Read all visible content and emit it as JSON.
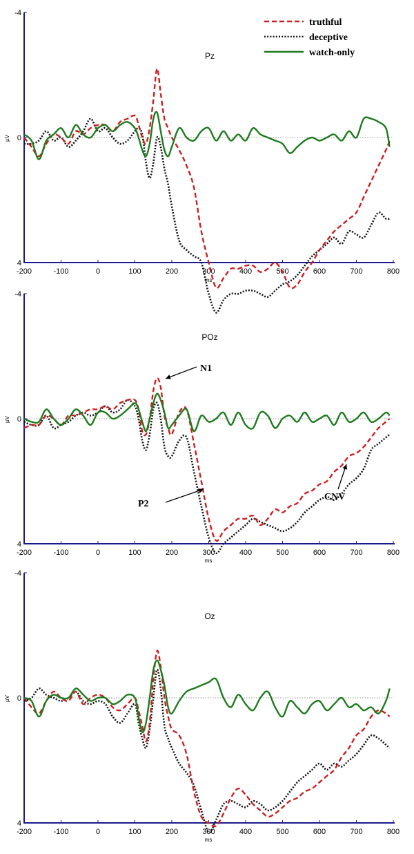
{
  "colors": {
    "truthful": "#cc1f1f",
    "deceptive": "#111111",
    "watch_only": "#1e7a1e",
    "axis": "#1a1a8c",
    "baseline": "#999999"
  },
  "legend": [
    {
      "name": "truthful",
      "style": "dashed",
      "color": "#cc1f1f"
    },
    {
      "name": "deceptive",
      "style": "dotted",
      "color": "#111111"
    },
    {
      "name": "watch-only",
      "style": "solid",
      "color": "#1e7a1e"
    }
  ],
  "chart_data": [
    {
      "type": "line",
      "title": "Pz",
      "xlabel": "ms",
      "ylabel": "µV",
      "xlim": [
        -200,
        800
      ],
      "ylim": [
        -4,
        4
      ],
      "y_inverted": true,
      "xticks": [
        -200,
        -100,
        0,
        100,
        200,
        300,
        400,
        500,
        600,
        700,
        800
      ],
      "yticks": [
        -4,
        0,
        4
      ],
      "x": [
        -200,
        -180,
        -160,
        -140,
        -120,
        -100,
        -80,
        -60,
        -40,
        -20,
        0,
        20,
        40,
        60,
        80,
        100,
        110,
        120,
        130,
        140,
        150,
        160,
        170,
        180,
        190,
        200,
        220,
        240,
        260,
        280,
        300,
        320,
        340,
        360,
        380,
        400,
        420,
        440,
        460,
        480,
        500,
        520,
        540,
        560,
        580,
        600,
        620,
        640,
        660,
        680,
        700,
        720,
        740,
        760,
        780,
        790
      ],
      "series": [
        {
          "name": "truthful",
          "values": [
            0,
            0.3,
            0.6,
            0.2,
            -0.1,
            0,
            0.2,
            -0.2,
            -0.1,
            -0.3,
            -0.4,
            -0.4,
            -0.2,
            -0.5,
            -0.6,
            -0.7,
            -0.4,
            0,
            0.2,
            -0.3,
            -1.2,
            -2.2,
            -1.4,
            -0.6,
            -0.3,
            0,
            0.4,
            0.9,
            1.6,
            3.0,
            4.0,
            4.8,
            4.5,
            4.2,
            4.2,
            4.1,
            4.1,
            4.3,
            4.2,
            4.0,
            4.3,
            4.8,
            4.7,
            4.3,
            4.0,
            3.6,
            3.3,
            3.0,
            2.8,
            2.6,
            2.4,
            1.9,
            1.4,
            0.9,
            0.4,
            0.1
          ]
        },
        {
          "name": "deceptive",
          "values": [
            0.2,
            0.2,
            0.1,
            -0.2,
            0.1,
            0,
            0.3,
            0.1,
            -0.2,
            -0.6,
            -0.2,
            -0.3,
            0,
            0.2,
            0.1,
            -0.2,
            -0.3,
            -0.1,
            0.8,
            1.3,
            0.8,
            0,
            0.3,
            1.0,
            1.5,
            2.2,
            3.3,
            3.6,
            3.8,
            4.0,
            5.0,
            5.6,
            5.2,
            5.0,
            5.0,
            4.9,
            4.9,
            5.0,
            5.1,
            4.9,
            4.7,
            4.6,
            4.4,
            4.1,
            3.8,
            3.6,
            3.4,
            3.2,
            3.4,
            3.0,
            3.1,
            3.2,
            2.8,
            2.4,
            2.6,
            2.6
          ]
        },
        {
          "name": "watch-only",
          "values": [
            -0.1,
            0.1,
            0.7,
            0.1,
            -0.1,
            -0.3,
            0,
            -0.4,
            -0.1,
            0,
            -0.3,
            -0.4,
            -0.2,
            -0.4,
            -0.5,
            -0.3,
            0,
            0.4,
            0.6,
            0.2,
            -0.6,
            -0.8,
            -0.2,
            0.4,
            0.6,
            0.3,
            -0.3,
            0,
            0.1,
            -0.2,
            -0.3,
            0.1,
            -0.2,
            0.1,
            -0.1,
            0.1,
            -0.3,
            -0.1,
            0,
            0.1,
            0.2,
            0.5,
            0.3,
            0.1,
            0,
            0.1,
            0,
            -0.1,
            0.1,
            -0.2,
            0,
            -0.6,
            -0.6,
            -0.5,
            -0.3,
            0.3
          ]
        }
      ]
    },
    {
      "type": "line",
      "title": "POz",
      "xlabel": "ms",
      "ylabel": "µV",
      "xlim": [
        -200,
        800
      ],
      "ylim": [
        -4,
        4
      ],
      "y_inverted": true,
      "xticks": [
        -200,
        -100,
        0,
        100,
        200,
        300,
        400,
        500,
        600,
        700,
        800
      ],
      "yticks": [
        -4,
        0,
        4
      ],
      "x": [
        -200,
        -180,
        -160,
        -140,
        -120,
        -100,
        -80,
        -60,
        -40,
        -20,
        0,
        20,
        40,
        60,
        80,
        100,
        110,
        120,
        130,
        140,
        150,
        160,
        170,
        180,
        190,
        200,
        220,
        240,
        260,
        280,
        300,
        320,
        340,
        360,
        380,
        400,
        420,
        440,
        460,
        480,
        500,
        520,
        540,
        560,
        580,
        600,
        620,
        640,
        660,
        680,
        700,
        720,
        740,
        760,
        780,
        790
      ],
      "series": [
        {
          "name": "truthful",
          "values": [
            0.3,
            0.2,
            0.2,
            -0.1,
            0,
            0.2,
            -0.1,
            -0.1,
            -0.2,
            -0.3,
            -0.3,
            -0.4,
            -0.3,
            -0.5,
            -0.6,
            -0.6,
            -0.3,
            0.4,
            0.5,
            0,
            -0.9,
            -1.3,
            -1.0,
            -0.1,
            0.3,
            0.5,
            -0.2,
            -0.3,
            0.8,
            2.0,
            3.2,
            3.9,
            3.6,
            3.4,
            3.2,
            3.2,
            3.1,
            3.4,
            3.2,
            2.9,
            3.0,
            2.8,
            2.7,
            2.4,
            2.3,
            2.1,
            2.0,
            1.7,
            1.5,
            1.2,
            1.1,
            0.9,
            0.6,
            0.3,
            0.1,
            0
          ]
        },
        {
          "name": "deceptive",
          "values": [
            0.1,
            0.2,
            0.2,
            -0.1,
            0.3,
            0.2,
            0.1,
            -0.1,
            -0.2,
            -0.1,
            -0.2,
            -0.4,
            -0.2,
            -0.3,
            -0.6,
            -0.4,
            0,
            0.7,
            1.0,
            0.5,
            -0.3,
            -0.5,
            0,
            0.9,
            1.2,
            1.2,
            0.7,
            0.6,
            1.7,
            2.8,
            3.8,
            4.3,
            4.0,
            3.8,
            3.6,
            3.4,
            3.2,
            3.3,
            3.4,
            3.5,
            3.6,
            3.5,
            3.3,
            3.0,
            2.8,
            2.6,
            2.5,
            2.6,
            2.4,
            2.1,
            1.9,
            1.6,
            1.0,
            0.8,
            0.6,
            0.5
          ]
        },
        {
          "name": "watch-only",
          "values": [
            0,
            0.1,
            0.1,
            -0.3,
            0,
            0.2,
            0,
            -0.3,
            -0.1,
            0.2,
            -0.2,
            -0.2,
            0,
            -0.1,
            -0.3,
            -0.5,
            -0.3,
            0.1,
            0.4,
            0,
            -0.5,
            -0.8,
            -0.6,
            -0.2,
            0.3,
            0.2,
            -0.1,
            -0.3,
            0.4,
            -0.1,
            0.1,
            0,
            -0.2,
            0.2,
            -0.2,
            0.2,
            0.3,
            -0.2,
            -0.1,
            0.3,
            0,
            -0.1,
            0.1,
            -0.2,
            0.1,
            0,
            -0.1,
            0.2,
            -0.2,
            0.1,
            0,
            -0.2,
            0.1,
            0,
            -0.2,
            -0.1
          ]
        }
      ],
      "annotations": [
        {
          "label": "N1",
          "x": 165
        },
        {
          "label": "P2",
          "x": 320
        },
        {
          "label": "CNV",
          "x": 680
        }
      ]
    },
    {
      "type": "line",
      "title": "Oz",
      "xlabel": "ms",
      "ylabel": "µV",
      "xlim": [
        -200,
        800
      ],
      "ylim": [
        -4,
        4
      ],
      "y_inverted": true,
      "xticks": [
        -200,
        -100,
        0,
        100,
        200,
        300,
        400,
        500,
        600,
        700,
        800
      ],
      "yticks": [
        -4,
        0,
        4
      ],
      "x": [
        -200,
        -180,
        -160,
        -140,
        -120,
        -100,
        -80,
        -60,
        -40,
        -20,
        0,
        20,
        40,
        60,
        80,
        100,
        110,
        120,
        130,
        140,
        150,
        160,
        170,
        180,
        190,
        200,
        220,
        240,
        260,
        280,
        300,
        320,
        340,
        360,
        380,
        400,
        420,
        440,
        460,
        480,
        500,
        520,
        540,
        560,
        580,
        600,
        620,
        640,
        660,
        680,
        700,
        720,
        740,
        760,
        780,
        790
      ],
      "series": [
        {
          "name": "truthful",
          "values": [
            0,
            0.3,
            0.5,
            0.1,
            -0.2,
            0,
            0.1,
            -0.2,
            0.2,
            0,
            -0.1,
            0,
            0.3,
            0.4,
            0.2,
            0,
            0.4,
            0.9,
            1.4,
            0.8,
            -0.6,
            -1.5,
            -1.0,
            0,
            0.6,
            1.0,
            1.2,
            1.8,
            3.0,
            3.8,
            4.0,
            4.1,
            3.7,
            3.2,
            2.9,
            3.1,
            3.4,
            3.6,
            3.8,
            3.7,
            3.5,
            3.3,
            3.2,
            3.0,
            2.9,
            2.7,
            2.5,
            2.3,
            1.9,
            1.6,
            1.2,
            1.0,
            0.6,
            0.4,
            0.5,
            0.6
          ]
        },
        {
          "name": "deceptive",
          "values": [
            0.1,
            0,
            -0.3,
            -0.1,
            0,
            0.1,
            0,
            -0.2,
            0.1,
            0.2,
            0.1,
            0.2,
            0.6,
            0.8,
            0.5,
            0.2,
            0.8,
            1.3,
            1.6,
            1.0,
            0,
            -0.9,
            -0.3,
            0.9,
            1.3,
            1.6,
            2.1,
            2.4,
            2.8,
            3.6,
            4.3,
            3.9,
            3.4,
            3.3,
            3.4,
            3.5,
            3.3,
            3.4,
            3.6,
            3.5,
            3.3,
            3.0,
            2.7,
            2.5,
            2.3,
            2.1,
            2.3,
            2.1,
            2.2,
            2.0,
            1.8,
            1.5,
            1.2,
            1.3,
            1.5,
            1.6
          ]
        },
        {
          "name": "watch-only",
          "values": [
            0,
            0.1,
            0.6,
            0.1,
            -0.1,
            0,
            0,
            -0.3,
            -0.1,
            0.1,
            0,
            0,
            0.2,
            0.1,
            -0.1,
            0,
            0.6,
            1.1,
            0.8,
            0,
            -0.9,
            -1.2,
            -0.9,
            -0.4,
            0.3,
            0.5,
            0.1,
            -0.2,
            -0.3,
            -0.4,
            -0.5,
            -0.6,
            0,
            0.3,
            -0.1,
            0.2,
            0.4,
            0,
            -0.2,
            0.3,
            0.6,
            0.1,
            0.3,
            0.5,
            0.2,
            0.1,
            0.4,
            0.2,
            0,
            0.3,
            0.2,
            0.4,
            0.3,
            0.5,
            0.1,
            -0.3
          ]
        }
      ]
    }
  ]
}
